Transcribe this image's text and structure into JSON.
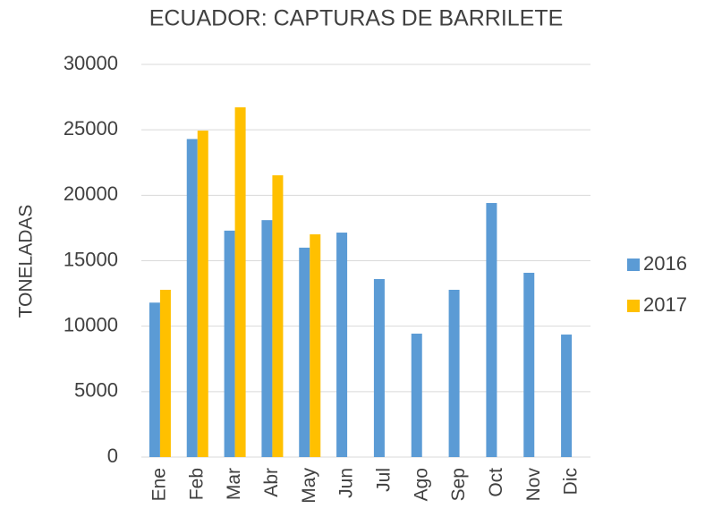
{
  "chart_data": {
    "type": "bar",
    "title": "ECUADOR: CAPTURAS DE BARRILETE",
    "y_label": "TONELADAS",
    "categories": [
      "Ene",
      "Feb",
      "Mar",
      "Abr",
      "May",
      "Jun",
      "Jul",
      "Ago",
      "Sep",
      "Oct",
      "Nov",
      "Dic"
    ],
    "series": [
      {
        "name": "2016",
        "color": "#5b9bd5",
        "values": [
          11800,
          24300,
          17300,
          18100,
          16000,
          17150,
          13600,
          9430,
          12780,
          19410,
          14080,
          9360
        ]
      },
      {
        "name": "2017",
        "color": "#ffc000",
        "values": [
          12780,
          24940,
          26720,
          21530,
          17020,
          null,
          null,
          null,
          null,
          null,
          null,
          null
        ]
      }
    ],
    "ylim": [
      0,
      30000
    ],
    "yticks": [
      0,
      5000,
      10000,
      15000,
      20000,
      25000,
      30000
    ],
    "grid": true,
    "legend": "right"
  }
}
